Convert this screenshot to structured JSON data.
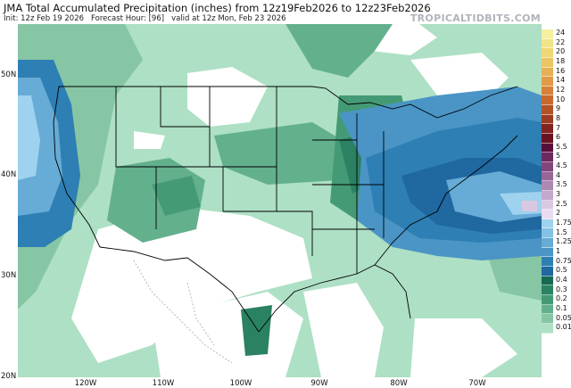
{
  "header": {
    "title": "JMA Total Accumulated Precipitation (inches) from 12z19Feb2026 to 12z23Feb2026",
    "init": "Init: 12z Feb 19 2026",
    "forecast_hour": "Forecast Hour: [96]",
    "valid": "valid at 12z Mon, Feb 23 2026"
  },
  "brand": "TROPICALTIDBITS.COM",
  "map": {
    "lat_labels": [
      "50N",
      "40N",
      "30N",
      "20N"
    ],
    "lon_labels": [
      "120W",
      "110W",
      "100W",
      "90W",
      "80W",
      "70W"
    ]
  },
  "colorbar": {
    "levels": [
      "24",
      "22",
      "20",
      "18",
      "16",
      "14",
      "12",
      "10",
      "9",
      "8",
      "7",
      "6",
      "5.5",
      "5",
      "4.5",
      "4",
      "3.5",
      "3",
      "2.5",
      "2",
      "1.75",
      "1.5",
      "1.25",
      "1",
      "0.75",
      "0.5",
      "0.4",
      "0.3",
      "0.2",
      "0.1",
      "0.05",
      "0.01"
    ],
    "colors": [
      "#f4f0a0",
      "#f2e48a",
      "#efd676",
      "#ebc464",
      "#e6b055",
      "#e09a48",
      "#d6823b",
      "#c86a30",
      "#b45227",
      "#9c3a22",
      "#82241f",
      "#6a1222",
      "#5a0e3a",
      "#6e2a5e",
      "#82467a",
      "#986696",
      "#ae88b2",
      "#c4a9cc",
      "#dac8e2",
      "#eadcf0",
      "#9fd2ee",
      "#83c2e4",
      "#66acd6",
      "#4a95c6",
      "#2e7fb4",
      "#1f68a0",
      "#176a52",
      "#2a8262",
      "#459a76",
      "#63b08c",
      "#86c6a4",
      "#ade0c4"
    ]
  }
}
